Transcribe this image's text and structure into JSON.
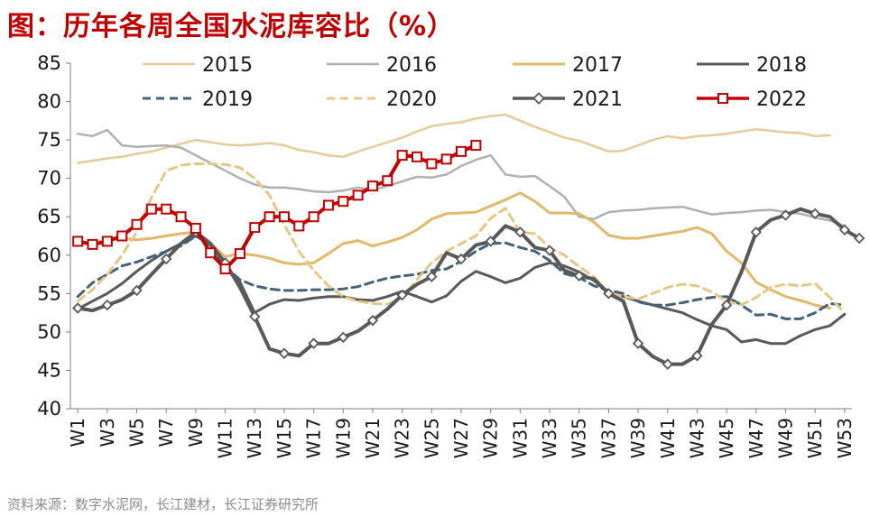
{
  "title": "图：历年各周全国水泥库容比（%）",
  "source": "资料来源：数字水泥网，长江建材，长江证券研究所",
  "chart_data": {
    "type": "line",
    "ylim": [
      40,
      85
    ],
    "yticks": [
      40,
      45,
      50,
      55,
      60,
      65,
      70,
      75,
      80,
      85
    ],
    "xticks": [
      "W1",
      "W3",
      "W5",
      "W7",
      "W9",
      "W11",
      "W13",
      "W15",
      "W17",
      "W19",
      "W21",
      "W23",
      "W25",
      "W27",
      "W29",
      "W31",
      "W33",
      "W35",
      "W37",
      "W39",
      "W41",
      "W43",
      "W45",
      "W47",
      "W49",
      "W51",
      "W53"
    ],
    "legend_position": "top",
    "series": [
      {
        "name": "2015",
        "color": "#e8c99a",
        "style": "solid",
        "width": 2.5,
        "marker": "none",
        "values": [
          72,
          72.3,
          72.6,
          72.8,
          73.2,
          73.5,
          74,
          74.5,
          75,
          74.7,
          74.4,
          74.3,
          74.4,
          74.6,
          74.3,
          73.7,
          73.4,
          73,
          72.8,
          73.5,
          74.1,
          74.7,
          75.3,
          76.1,
          76.8,
          77.1,
          77.3,
          77.8,
          78.1,
          78.3,
          77.5,
          76.7,
          76,
          75.3,
          74.9,
          74.2,
          73.5,
          73.6,
          74.3,
          75,
          75.5,
          75.2,
          75.5,
          75.6,
          75.8,
          76.1,
          76.4,
          76.2,
          76,
          75.9,
          75.5,
          75.6
        ]
      },
      {
        "name": "2016",
        "color": "#b0b0b0",
        "style": "solid",
        "width": 2.5,
        "marker": "none",
        "values": [
          75.8,
          75.5,
          76.3,
          74.3,
          74.1,
          74.2,
          74.3,
          74,
          73,
          72,
          71,
          70,
          69.2,
          68.8,
          68.8,
          68.6,
          68.3,
          68.2,
          68.4,
          68.8,
          68.5,
          69,
          69.6,
          70.2,
          70.1,
          70.5,
          71.6,
          72.4,
          73,
          70.5,
          70.2,
          70.3,
          69,
          67.6,
          65,
          64.7,
          65.6,
          65.8,
          65.9,
          66.1,
          66.2,
          66.3,
          65.8,
          65.3,
          65.5,
          65.6,
          65.8,
          65.9,
          65.6,
          65.4,
          64.9,
          64.5,
          63.8
        ]
      },
      {
        "name": "2017",
        "color": "#e0b96a",
        "style": "solid",
        "width": 3,
        "marker": "none",
        "values": [
          61.8,
          61.5,
          62,
          62.2,
          62,
          62.2,
          62.5,
          62.8,
          63,
          61.5,
          59.8,
          60.2,
          60,
          59.6,
          59,
          58.8,
          59,
          60.2,
          61.5,
          61.9,
          61.2,
          61.7,
          62.3,
          63.3,
          64.7,
          65.4,
          65.5,
          65.6,
          66.4,
          67.2,
          68.1,
          67,
          65.5,
          65.5,
          65.4,
          64.3,
          62.6,
          62.2,
          62.2,
          62.5,
          62.8,
          63.1,
          63.6,
          62.8,
          60.5,
          59,
          56.5,
          55.5,
          54.6,
          54.1,
          53.5,
          53.1
        ]
      },
      {
        "name": "2018",
        "color": "#595959",
        "style": "solid",
        "width": 3,
        "marker": "none",
        "values": [
          53,
          54,
          55,
          56.3,
          57.9,
          59.3,
          60.5,
          61.5,
          62.5,
          61.5,
          58.5,
          56.5,
          52.5,
          53.6,
          54.2,
          54.1,
          54.4,
          54.6,
          54.6,
          54.2,
          54.1,
          54.6,
          55.3,
          54.6,
          53.9,
          54.7,
          56.6,
          57.9,
          57.2,
          56.4,
          57,
          58.4,
          59,
          58.6,
          57.8,
          56.7,
          55,
          54.6,
          54,
          53.5,
          53,
          52.5,
          51.6,
          50.8,
          50.3,
          48.7,
          49,
          48.5,
          48.5,
          49.5,
          50.3,
          50.8,
          52.3
        ]
      },
      {
        "name": "2019",
        "color": "#44637b",
        "style": "dash",
        "width": 3,
        "marker": "none",
        "values": [
          54.6,
          56.4,
          57.5,
          58.6,
          59.1,
          59.8,
          60.5,
          61.2,
          62.5,
          61.3,
          58.5,
          56.8,
          56,
          55.6,
          55.4,
          55.4,
          55.5,
          55.5,
          55.6,
          55.9,
          56.5,
          57,
          57.3,
          57.5,
          58,
          58.2,
          59.2,
          60.5,
          61.5,
          61.6,
          61,
          60.5,
          59.3,
          57.6,
          57.1,
          56,
          55.4,
          55,
          53.9,
          53.5,
          53.5,
          53.8,
          54.2,
          54.5,
          54.6,
          53.5,
          52.2,
          52.3,
          51.7,
          51.7,
          52.5,
          53.7,
          53.5
        ]
      },
      {
        "name": "2020",
        "color": "#e5c888",
        "style": "dash",
        "width": 3,
        "marker": "none",
        "values": [
          54,
          55.5,
          57.5,
          60,
          63,
          67.5,
          71,
          71.7,
          71.9,
          71.9,
          71.8,
          71.4,
          70,
          67.8,
          64,
          60.5,
          58,
          56,
          54.6,
          54,
          53.7,
          53.6,
          54.5,
          56.8,
          59,
          60.5,
          61.5,
          62.5,
          64.8,
          66.1,
          63,
          62.8,
          61,
          60,
          58.5,
          57.2,
          55,
          54.6,
          54.3,
          55,
          55.8,
          56.2,
          56,
          55.2,
          54,
          53.5,
          54.5,
          55.8,
          56.2,
          56,
          56.3,
          54.5,
          52.5
        ]
      },
      {
        "name": "2021",
        "color": "#595959",
        "style": "solid",
        "width": 4,
        "marker": "diamond",
        "values": [
          53.1,
          52.8,
          53.5,
          54.2,
          55.4,
          57.5,
          59.5,
          61.5,
          63,
          61.5,
          59,
          55.8,
          52,
          47.8,
          47.2,
          46.9,
          48.5,
          48.5,
          49.3,
          50.1,
          51.5,
          53,
          54.8,
          56.2,
          57.2,
          60.3,
          59.5,
          61.3,
          61.8,
          63.8,
          63,
          61,
          60.6,
          58,
          57.3,
          56.9,
          55,
          54,
          48.5,
          46.8,
          45.8,
          45.8,
          46.9,
          51,
          53.5,
          57.8,
          63,
          64.6,
          65.2,
          66,
          65.4,
          65,
          63.3,
          62.2
        ]
      },
      {
        "name": "2022",
        "color": "#c00000",
        "style": "solid",
        "width": 4,
        "marker": "square",
        "values": [
          61.8,
          61.4,
          61.8,
          62.5,
          64,
          66,
          66,
          65,
          63.5,
          60.3,
          58.2,
          60.2,
          63.6,
          65,
          65,
          63.8,
          65,
          66.5,
          67,
          67.8,
          69,
          69.7,
          73,
          72.8,
          71.9,
          72.5,
          73.5,
          74.3
        ]
      }
    ]
  }
}
